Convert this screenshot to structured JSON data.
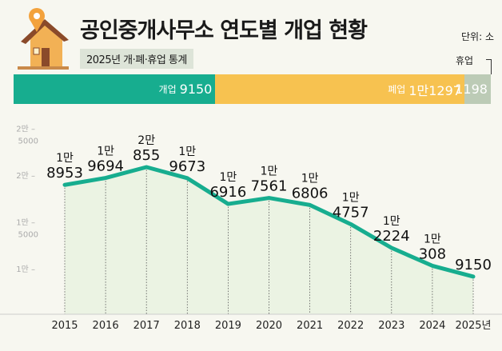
{
  "header": {
    "title": "공인중개사무소 연도별 개업 현황",
    "subtitle": "2025년 개·폐·휴업 통계",
    "unit": "단위: 소"
  },
  "summary_bar": {
    "segments": [
      {
        "label": "개업",
        "value_text": "9150",
        "value": 9150,
        "color": "#17ad8f"
      },
      {
        "label": "폐업",
        "value_text": "1만1297",
        "value": 11297,
        "color": "#f7c250"
      },
      {
        "label": "휴업",
        "value_text": "1198",
        "value": 1198,
        "color": "#bccbb6"
      }
    ]
  },
  "chart_data": {
    "type": "line",
    "title": "",
    "xlabel": "",
    "ylabel": "",
    "x": [
      "2015",
      "2016",
      "2017",
      "2018",
      "2019",
      "2020",
      "2021",
      "2022",
      "2023",
      "2024",
      "2025년"
    ],
    "values": [
      18953,
      19694,
      20855,
      19673,
      16916,
      17561,
      16806,
      14757,
      12224,
      10308,
      9150
    ],
    "data_labels": [
      [
        "1만",
        "8953"
      ],
      [
        "1만",
        "9694"
      ],
      [
        "2만",
        "855"
      ],
      [
        "1만",
        "9673"
      ],
      [
        "1만",
        "6916"
      ],
      [
        "1만",
        "7561"
      ],
      [
        "1만",
        "6806"
      ],
      [
        "1만",
        "4757"
      ],
      [
        "1만",
        "2224"
      ],
      [
        "1만",
        "308"
      ],
      [
        "",
        "9150"
      ]
    ],
    "y_ticks": [
      {
        "value": 25000,
        "label": [
          "2만",
          "5000"
        ]
      },
      {
        "value": 20000,
        "label": [
          "2만",
          ""
        ]
      },
      {
        "value": 15000,
        "label": [
          "1만",
          "5000"
        ]
      },
      {
        "value": 10000,
        "label": [
          "1만",
          ""
        ]
      }
    ],
    "line_color": "#17ad8f",
    "fill_color": "#ebf3e3",
    "grid": false
  }
}
